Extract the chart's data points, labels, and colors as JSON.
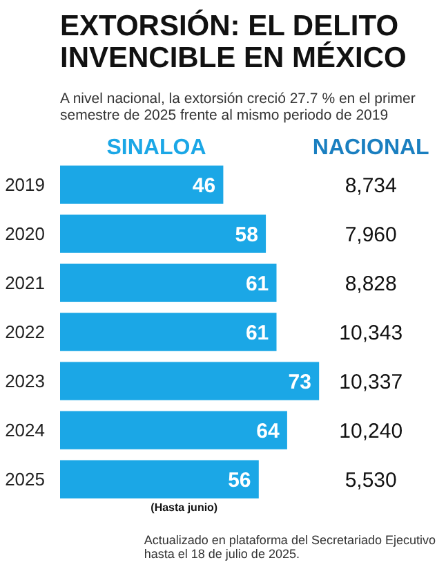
{
  "chart_data": {
    "type": "bar",
    "orientation": "horizontal",
    "title": "EXTORSIÓN: EL DELITO\nINVENCIBLE EN MÉXICO",
    "subtitle": "A nivel nacional, la extorsión creció 27.7 % en el primer\nsemestre de 2025 frente al mismo periodo de 2019",
    "categories": [
      "2019",
      "2020",
      "2021",
      "2022",
      "2023",
      "2024",
      "2025"
    ],
    "series": [
      {
        "name": "SINALOA",
        "color": "#1ba7e6",
        "values": [
          46,
          58,
          61,
          61,
          73,
          64,
          56
        ]
      }
    ],
    "data_labels": true,
    "annotations": [
      "NACIONAL",
      "(Hasta junio)",
      "Actualizado en plataforma del Secretariado Ejecutivo\nhasta el 18 de julio de 2025.",
      "8,734",
      "7,960",
      "8,828",
      "10,343",
      "10,337",
      "10,240",
      "5,530"
    ]
  }
}
